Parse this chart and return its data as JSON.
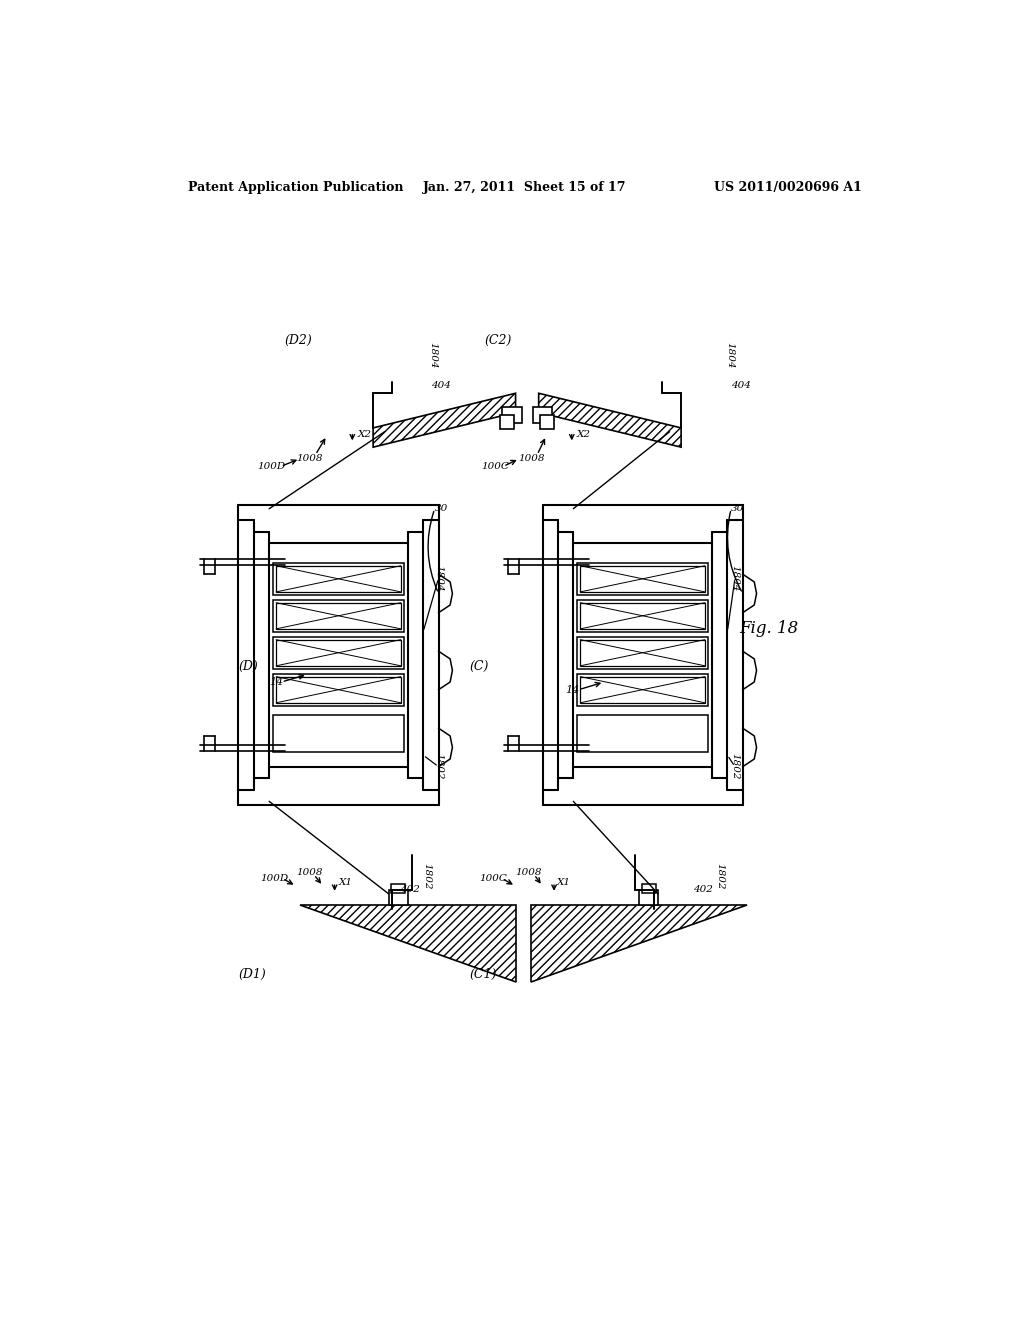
{
  "header_left": "Patent Application Publication",
  "header_mid": "Jan. 27, 2011  Sheet 15 of 17",
  "header_right": "US 2011/0020696 A1",
  "fig_label": "Fig. 18",
  "bg_color": "#ffffff"
}
